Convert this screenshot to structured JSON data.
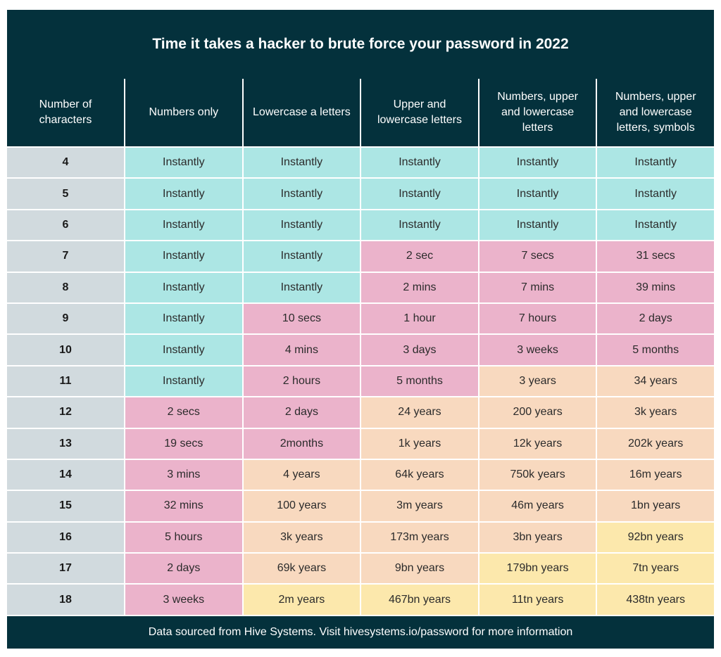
{
  "chart_data": {
    "type": "table",
    "title": "Time it takes a hacker to brute force your password in 2022",
    "columns": [
      "Number of characters",
      "Numbers only",
      "Lowercase a letters",
      "Upper and lowercase letters",
      "Numbers, upper and lowercase letters",
      "Numbers, upper and lowercase letters, symbols"
    ],
    "rows": [
      [
        "4",
        "Instantly",
        "Instantly",
        "Instantly",
        "Instantly",
        "Instantly"
      ],
      [
        "5",
        "Instantly",
        "Instantly",
        "Instantly",
        "Instantly",
        "Instantly"
      ],
      [
        "6",
        "Instantly",
        "Instantly",
        "Instantly",
        "Instantly",
        "Instantly"
      ],
      [
        "7",
        "Instantly",
        "Instantly",
        "2 sec",
        "7 secs",
        "31 secs"
      ],
      [
        "8",
        "Instantly",
        "Instantly",
        "2 mins",
        "7 mins",
        "39 mins"
      ],
      [
        "9",
        "Instantly",
        "10 secs",
        "1 hour",
        "7 hours",
        "2 days"
      ],
      [
        "10",
        "Instantly",
        "4 mins",
        "3 days",
        "3 weeks",
        "5 months"
      ],
      [
        "11",
        "Instantly",
        "2 hours",
        "5 months",
        "3 years",
        "34 years"
      ],
      [
        "12",
        "2 secs",
        "2 days",
        "24 years",
        "200 years",
        "3k years"
      ],
      [
        "13",
        "19 secs",
        "2months",
        "1k years",
        "12k years",
        "202k years"
      ],
      [
        "14",
        "3 mins",
        "4 years",
        "64k years",
        "750k years",
        "16m years"
      ],
      [
        "15",
        "32 mins",
        "100 years",
        "3m years",
        "46m years",
        "1bn years"
      ],
      [
        "16",
        "5 hours",
        "3k years",
        "173m years",
        "3bn years",
        "92bn years"
      ],
      [
        "17",
        "2 days",
        "69k years",
        "9bn years",
        "179bn years",
        "7tn years"
      ],
      [
        "18",
        "3 weeks",
        "2m years",
        "467bn years",
        "11tn years",
        "438tn years"
      ]
    ],
    "cell_levels": [
      [
        "teal",
        "teal",
        "teal",
        "teal",
        "teal"
      ],
      [
        "teal",
        "teal",
        "teal",
        "teal",
        "teal"
      ],
      [
        "teal",
        "teal",
        "teal",
        "teal",
        "teal"
      ],
      [
        "teal",
        "teal",
        "pink",
        "pink",
        "pink"
      ],
      [
        "teal",
        "teal",
        "pink",
        "pink",
        "pink"
      ],
      [
        "teal",
        "pink",
        "pink",
        "pink",
        "pink"
      ],
      [
        "teal",
        "pink",
        "pink",
        "pink",
        "pink"
      ],
      [
        "teal",
        "pink",
        "pink",
        "peach",
        "peach"
      ],
      [
        "pink",
        "pink",
        "peach",
        "peach",
        "peach"
      ],
      [
        "pink",
        "pink",
        "peach",
        "peach",
        "peach"
      ],
      [
        "pink",
        "peach",
        "peach",
        "peach",
        "peach"
      ],
      [
        "pink",
        "peach",
        "peach",
        "peach",
        "peach"
      ],
      [
        "pink",
        "peach",
        "peach",
        "peach",
        "yellow"
      ],
      [
        "pink",
        "peach",
        "peach",
        "yellow",
        "yellow"
      ],
      [
        "pink",
        "yellow",
        "yellow",
        "yellow",
        "yellow"
      ]
    ],
    "level_colors": {
      "teal": "#ace6e4",
      "pink": "#ebb3cb",
      "peach": "#f8d9bf",
      "yellow": "#fce8ac"
    },
    "footer": "Data sourced from Hive Systems. Visit hivesystems.io/password for more information"
  }
}
